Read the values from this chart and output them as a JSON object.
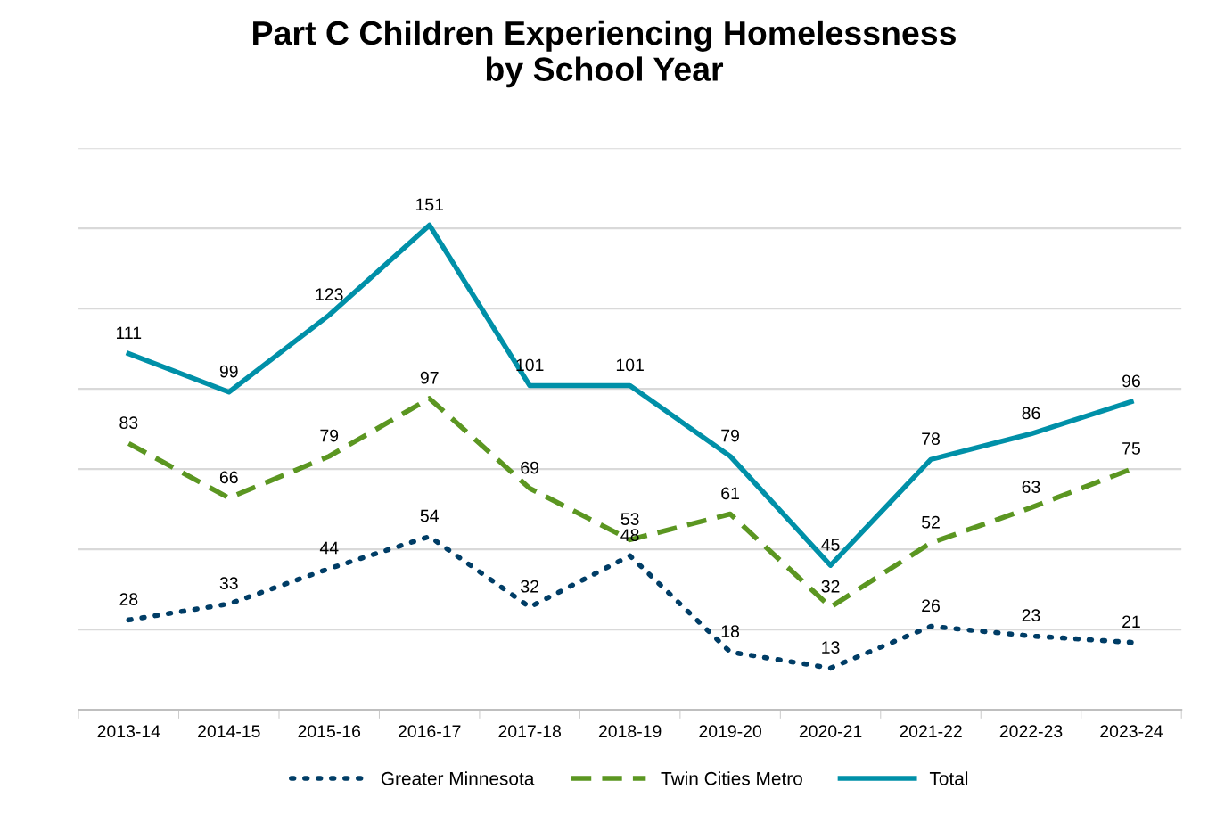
{
  "chart_data": {
    "type": "line",
    "title": "Part C Children Experiencing Homelessness\nby School Year",
    "categories": [
      "2013-14",
      "2014-15",
      "2015-16",
      "2016-17",
      "2017-18",
      "2018-19",
      "2019-20",
      "2020-21",
      "2021-22",
      "2022-23",
      "2023-24"
    ],
    "series": [
      {
        "name": "Greater Minnesota",
        "color": "#003d66",
        "line_style": "dotted",
        "values": [
          28,
          33,
          44,
          54,
          32,
          48,
          18,
          13,
          26,
          23,
          21
        ]
      },
      {
        "name": "Twin Cities Metro",
        "color": "#5b9621",
        "line_style": "dashed",
        "values": [
          83,
          66,
          79,
          97,
          69,
          53,
          61,
          32,
          52,
          63,
          75
        ]
      },
      {
        "name": "Total",
        "color": "#0090a8",
        "line_style": "solid",
        "values": [
          111,
          99,
          123,
          151,
          101,
          101,
          79,
          45,
          78,
          86,
          96
        ]
      }
    ],
    "ylim": [
      0,
      175
    ],
    "yticks": [
      {
        "value": 25,
        "label": null
      },
      {
        "value": 50,
        "label": null
      },
      {
        "value": 75,
        "label": null
      },
      {
        "value": 100,
        "label": null
      },
      {
        "value": 125,
        "label": null
      },
      {
        "value": 150,
        "label": null
      },
      {
        "value": 175,
        "label": null
      }
    ],
    "tick_labels": "x",
    "grid": "y",
    "legend": "bottom",
    "marker": "none",
    "data_labels": true
  }
}
